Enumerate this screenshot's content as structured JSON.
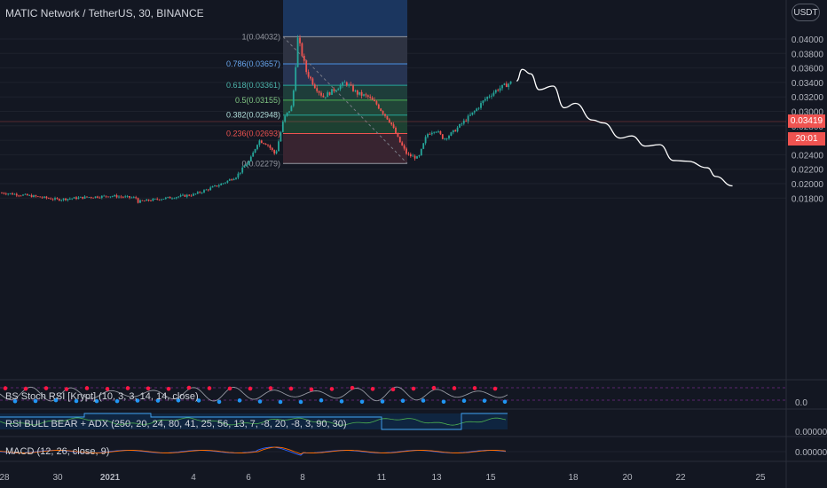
{
  "header": {
    "title": "MATIC Network / TetherUS, 30, BINANCE",
    "currency_label": "USDT"
  },
  "price_labels": {
    "last_price": "0.03419",
    "countdown": "20:01",
    "last_price_color": "#ef5350"
  },
  "indicators": {
    "stoch": {
      "label": "BS Stoch RSI [Krypt] (10, 3, 3, 14, 14, close)",
      "axis_value": "0.0"
    },
    "rsi": {
      "label": "RSI BULL BEAR + ADX (250, 20, 24, 80, 41, 25, 56, 13, 7, -8, 20, -8, 3, 90, 30)",
      "axis_value": "0.00000"
    },
    "macd": {
      "label": "MACD (12, 26, close, 9)",
      "axis_value": "0.00000"
    }
  },
  "fib_levels": [
    {
      "label": "1(0.04032)",
      "value": 0.04032
    },
    {
      "label": "0.786(0.03657)",
      "value": 0.03657
    },
    {
      "label": "0.618(0.03361)",
      "value": 0.03361
    },
    {
      "label": "0.5(0.03155)",
      "value": 0.03155
    },
    {
      "label": "0.382(0.02948)",
      "value": 0.02948
    },
    {
      "label": "0.236(0.02693)",
      "value": 0.02693
    },
    {
      "label": "0(0.02279)",
      "value": 0.02279
    }
  ],
  "chart_data": {
    "type": "candlestick",
    "title": "MATIC Network / TetherUS, 30, BINANCE",
    "y_axis_ticks": [
      "0.04000",
      "0.03800",
      "0.03600",
      "0.03400",
      "0.03200",
      "0.03000",
      "0.02800",
      "0.02600",
      "0.02400",
      "0.02200",
      "0.02000",
      "0.01800"
    ],
    "x_axis_ticks": [
      "28",
      "30",
      "2021",
      "4",
      "6",
      "8",
      "11",
      "13",
      "15",
      "18",
      "20",
      "22",
      "25"
    ],
    "ylim": [
      0.0162,
      0.0422
    ],
    "xlim": [
      27.9,
      29.3
    ],
    "projection_path": {
      "x": [
        15.5,
        15.7,
        16.0,
        16.3,
        16.8,
        17.2,
        17.6,
        18.2,
        18.6,
        19.2,
        19.6,
        20.1,
        20.6,
        21.1,
        21.6,
        22.3,
        22.6,
        23.2
      ],
      "y": [
        0.0342,
        0.0358,
        0.0352,
        0.033,
        0.0335,
        0.0305,
        0.0311,
        0.0288,
        0.0284,
        0.0263,
        0.0266,
        0.0252,
        0.0254,
        0.0232,
        0.0231,
        0.0222,
        0.021,
        0.0197
      ]
    },
    "candle_path": {
      "x": [
        26.0,
        27.0,
        28.0,
        29.0,
        30.0,
        31.0,
        32.0,
        33.0,
        2.0,
        3.0,
        4.0,
        5.0,
        5.5,
        6.0,
        6.3,
        6.6,
        6.9,
        7.2,
        7.5,
        7.7,
        8.0,
        8.3,
        8.6,
        9.0,
        9.4,
        9.8,
        10.2,
        10.5,
        10.8,
        11.0,
        11.3,
        11.6,
        12.0,
        12.3,
        12.6,
        12.9,
        13.2,
        13.6,
        14.0,
        14.4,
        14.8,
        15.3
      ],
      "y": [
        0.0186,
        0.019,
        0.0187,
        0.0183,
        0.0178,
        0.0181,
        0.0183,
        0.018,
        0.0175,
        0.018,
        0.0185,
        0.02,
        0.021,
        0.0233,
        0.026,
        0.0255,
        0.024,
        0.029,
        0.0308,
        0.0402,
        0.0355,
        0.0335,
        0.032,
        0.033,
        0.034,
        0.0325,
        0.032,
        0.031,
        0.0295,
        0.0285,
        0.026,
        0.024,
        0.0235,
        0.0268,
        0.0275,
        0.0262,
        0.027,
        0.0285,
        0.03,
        0.0318,
        0.033,
        0.034
      ]
    }
  }
}
